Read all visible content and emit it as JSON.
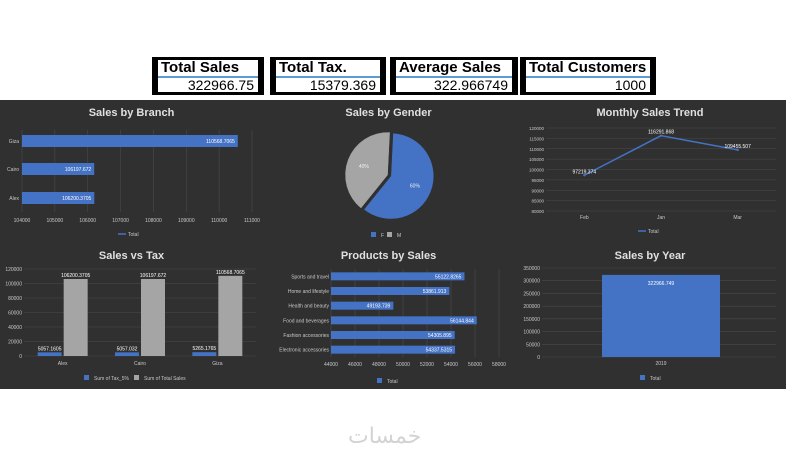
{
  "kpis": [
    {
      "label": "Total Sales",
      "value": "322966.75"
    },
    {
      "label": "Total Tax.",
      "value": "15379.369"
    },
    {
      "label": "Average Sales",
      "value": "322.966749"
    },
    {
      "label": "Total Customers",
      "value": "1000"
    }
  ],
  "watermark": "خمسات",
  "colors": {
    "blue": "#4472c4",
    "gray": "#a5a5a5",
    "panel": "#303030",
    "grid": "#4a4a4a",
    "text": "#c8c8c8"
  },
  "chart_data": [
    {
      "id": "branch",
      "type": "bar",
      "orientation": "horizontal",
      "title": "Sales by Branch",
      "categories": [
        "Giza",
        "Cairo",
        "Alex"
      ],
      "values": [
        110568.7065,
        106197.672,
        106200.3705
      ],
      "value_labels": [
        "110568.7065",
        "106197.672",
        "106200.3705"
      ],
      "xlim": [
        104000,
        111000
      ],
      "ticks": [
        104000,
        105000,
        106000,
        107000,
        108000,
        109000,
        110000,
        111000
      ],
      "tick_labels": [
        "104000",
        "105000",
        "106000",
        "107000",
        "108000",
        "109000",
        "110000",
        "111000"
      ],
      "series": [
        {
          "name": "Total"
        }
      ],
      "legend": "bottom"
    },
    {
      "id": "gender",
      "type": "pie",
      "title": "Sales by Gender",
      "categories": [
        "F",
        "M"
      ],
      "values": [
        60,
        40
      ],
      "value_labels": [
        "60%",
        "40%"
      ],
      "legend_labels": [
        "F",
        "M"
      ],
      "legend": "bottom"
    },
    {
      "id": "monthly",
      "type": "line",
      "title": "Monthly Sales Trend",
      "categories": [
        "Feb",
        "Jan",
        "Mar"
      ],
      "values": [
        97219.374,
        116291.868,
        109455.507
      ],
      "value_labels": [
        "97219.374",
        "116291.868",
        "109455.507"
      ],
      "ylim": [
        80000,
        120000
      ],
      "ticks": [
        80000,
        85000,
        90000,
        95000,
        100000,
        105000,
        110000,
        115000,
        120000
      ],
      "tick_labels": [
        "80000",
        "85000",
        "90000",
        "95000",
        "100000",
        "105000",
        "110000",
        "115000",
        "120000"
      ],
      "series": [
        {
          "name": "Total"
        }
      ],
      "legend": "bottom"
    },
    {
      "id": "tax",
      "type": "bar",
      "title": "Sales vs Tax",
      "categories": [
        "Alex",
        "Cairo",
        "Giza"
      ],
      "series": [
        {
          "name": "Sum of Tax_5%",
          "values": [
            5057.1605,
            5057.032,
            5265.1765
          ],
          "value_labels": [
            "5057.1605",
            "5057.032",
            "5265.1765"
          ]
        },
        {
          "name": "Sum of Total Sales",
          "values": [
            106200.3705,
            106197.672,
            110568.7065
          ],
          "value_labels": [
            "106200.3705",
            "106197.672",
            "110568.7065"
          ]
        }
      ],
      "ylim": [
        0,
        120000
      ],
      "ticks": [
        0,
        20000,
        40000,
        60000,
        80000,
        100000,
        120000
      ],
      "tick_labels": [
        "0",
        "20000",
        "40000",
        "60000",
        "80000",
        "100000",
        "120000"
      ],
      "legend_labels": [
        "Sum of Tax_5%",
        "Sum of Total Sales"
      ],
      "legend": "bottom"
    },
    {
      "id": "products",
      "type": "bar",
      "orientation": "horizontal",
      "title": "Products by Sales",
      "categories": [
        "Sports and travel",
        "Home and lifestyle",
        "Health and beauty",
        "Food and beverages",
        "Fashion accessories",
        "Electronic accessories"
      ],
      "values": [
        55122.8265,
        53861.913,
        49193.739,
        56144.844,
        54305.895,
        54337.5315
      ],
      "value_labels": [
        "55122.8265",
        "53861.913",
        "49193.739",
        "56144.844",
        "54305.895",
        "54337.5315"
      ],
      "xlim": [
        44000,
        58000
      ],
      "ticks": [
        44000,
        46000,
        48000,
        50000,
        52000,
        54000,
        56000,
        58000
      ],
      "tick_labels": [
        "44000",
        "46000",
        "48000",
        "50000",
        "52000",
        "54000",
        "56000",
        "58000"
      ],
      "series": [
        {
          "name": "Total"
        }
      ],
      "legend": "bottom"
    },
    {
      "id": "year",
      "type": "bar",
      "title": "Sales by Year",
      "categories": [
        "2019"
      ],
      "values": [
        322966.749
      ],
      "value_labels": [
        "322966.749"
      ],
      "ylim": [
        0,
        350000
      ],
      "ticks": [
        0,
        50000,
        100000,
        150000,
        200000,
        250000,
        300000,
        350000
      ],
      "tick_labels": [
        "0",
        "50000",
        "100000",
        "150000",
        "200000",
        "250000",
        "300000",
        "350000"
      ],
      "series": [
        {
          "name": "Total"
        }
      ],
      "legend": "bottom"
    }
  ]
}
